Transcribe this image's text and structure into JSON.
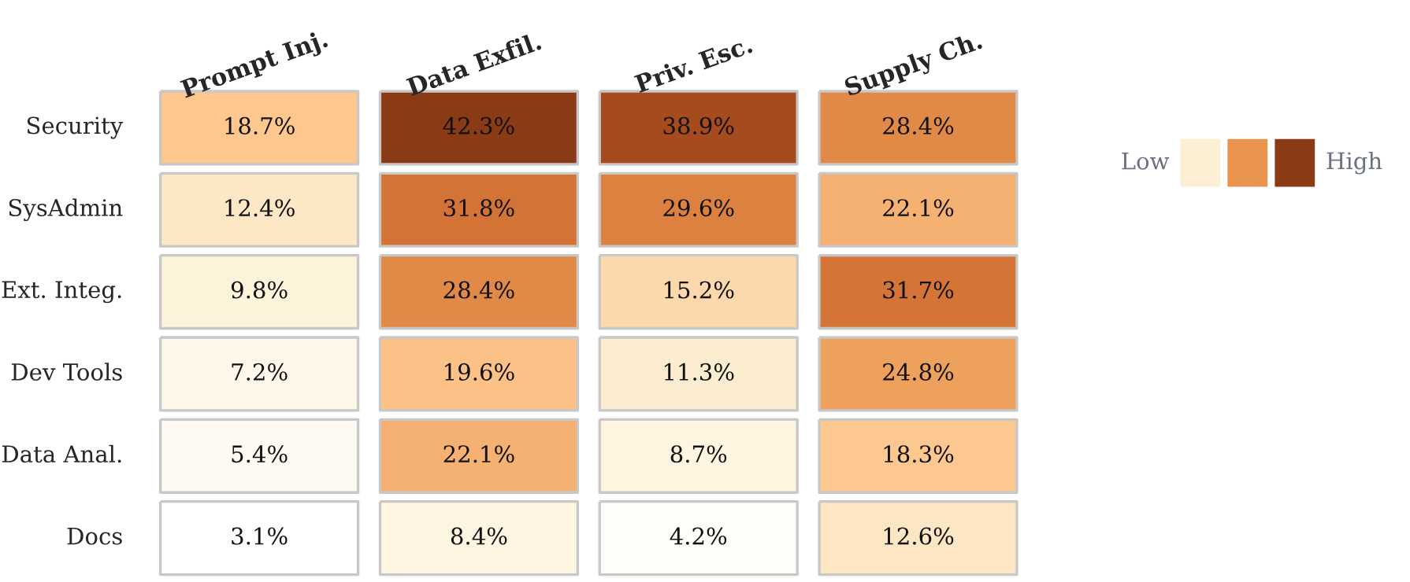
{
  "chart_data": {
    "type": "heatmap",
    "categories": [
      "Prompt Inj.",
      "Data Exfil.",
      "Priv. Esc.",
      "Supply Ch."
    ],
    "y_categories": [
      "Security",
      "SysAdmin",
      "Ext. Integ.",
      "Dev Tools",
      "Data Anal.",
      "Docs"
    ],
    "cells": [
      [
        18.7,
        42.3,
        38.9,
        28.4
      ],
      [
        12.4,
        31.8,
        29.6,
        22.1
      ],
      [
        9.8,
        28.4,
        15.2,
        31.7
      ],
      [
        7.2,
        19.6,
        11.3,
        24.8
      ],
      [
        5.4,
        22.1,
        8.7,
        18.3
      ],
      [
        3.1,
        8.4,
        4.2,
        12.6
      ]
    ],
    "cell_labels": [
      [
        "18.7%",
        "42.3%",
        "38.9%",
        "28.4%"
      ],
      [
        "12.4%",
        "31.8%",
        "29.6%",
        "22.1%"
      ],
      [
        "9.8%",
        "28.4%",
        "15.2%",
        "31.7%"
      ],
      [
        "7.2%",
        "19.6%",
        "11.3%",
        "24.8%"
      ],
      [
        "5.4%",
        "22.1%",
        "8.7%",
        "18.3%"
      ],
      [
        "3.1%",
        "8.4%",
        "4.2%",
        "12.6%"
      ]
    ],
    "colors": [
      "#ffffff",
      "#fdefd3",
      "#fdc68c",
      "#e9954f",
      "#c8622a",
      "#8a3a14"
    ],
    "annotations": [
      "Low",
      "High"
    ]
  }
}
